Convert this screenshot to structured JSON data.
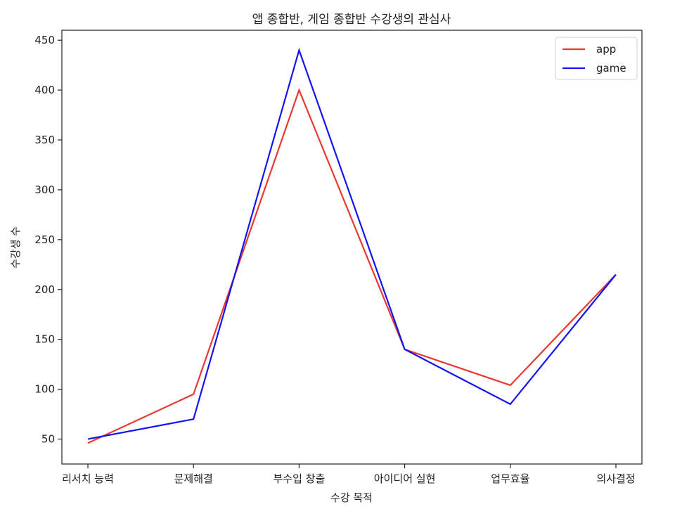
{
  "chart_data": {
    "type": "line",
    "title": "앱 종합반, 게임 종합반 수강생의 관심사",
    "xlabel": "수강 목적",
    "ylabel": "수강생 수",
    "categories": [
      "리서치 능력",
      "문제해결",
      "부수입 창출",
      "아이디어 실현",
      "업무효율",
      "의사결정"
    ],
    "yticks": [
      50,
      100,
      150,
      200,
      250,
      300,
      350,
      400,
      450
    ],
    "ylim": [
      25,
      460
    ],
    "grid": false,
    "legend_position": "top-right",
    "series": [
      {
        "name": "app",
        "color": "#e8382f",
        "values": [
          46,
          95,
          400,
          140,
          104,
          215
        ]
      },
      {
        "name": "game",
        "color": "#1414f0",
        "values": [
          50,
          70,
          440,
          140,
          85,
          215
        ]
      }
    ]
  }
}
